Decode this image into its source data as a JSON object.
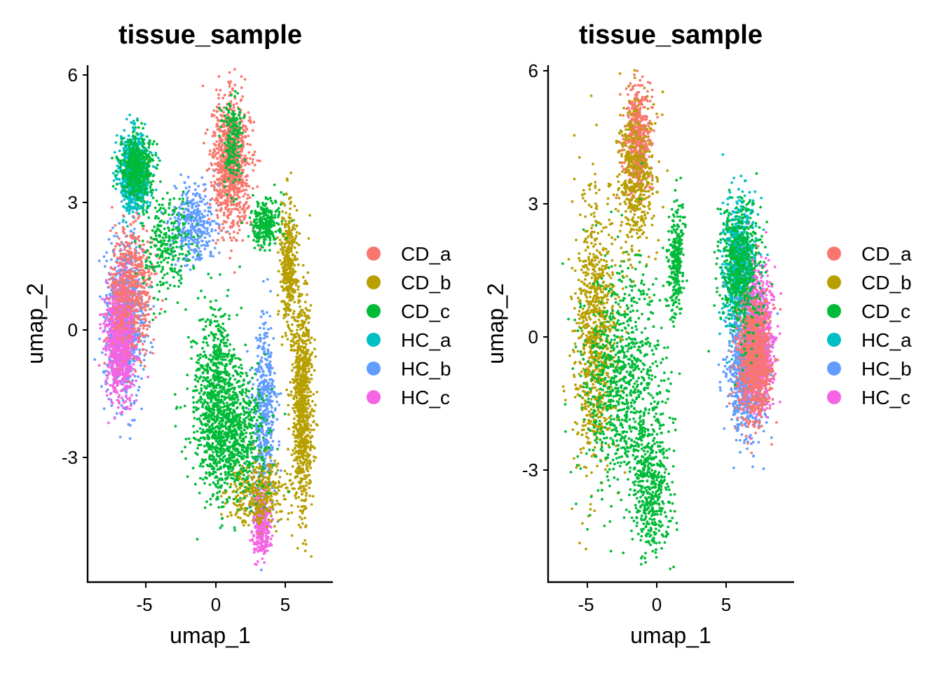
{
  "legend_colors": {
    "CD_a": "#F8766D",
    "CD_b": "#B79F00",
    "CD_c": "#00BA38",
    "HC_a": "#00BFC4",
    "HC_b": "#619CFF",
    "HC_c": "#F564E3"
  },
  "chart_data": [
    {
      "type": "scatter",
      "title": "tissue_sample",
      "xlabel": "umap_1",
      "ylabel": "umap_2",
      "xlim": [
        -9,
        8.3
      ],
      "ylim": [
        -6,
        6.2
      ],
      "xticks": [
        -5,
        0,
        5
      ],
      "yticks": [
        -3,
        0,
        3,
        6
      ],
      "xtick_labels": [
        "-5",
        "0",
        "5"
      ],
      "ytick_labels": [
        "-3",
        "0",
        "3",
        "6"
      ],
      "legend": {
        "title": "",
        "position": "right",
        "entries": [
          "CD_a",
          "CD_b",
          "CD_c",
          "HC_a",
          "HC_b",
          "HC_c"
        ]
      },
      "series": [
        {
          "name": "CD_c",
          "note": "dense, present across all clusters",
          "clusters": [
            {
              "x": 1.0,
              "y": -2.5,
              "sx": 1.7,
              "sy": 1.0,
              "weight": 1.0
            },
            {
              "x": 0.0,
              "y": -1.2,
              "sx": 1.1,
              "sy": 1.2,
              "weight": 0.6
            },
            {
              "x": -5.7,
              "y": 3.8,
              "sx": 0.8,
              "sy": 0.5,
              "weight": 0.5
            },
            {
              "x": -3.5,
              "y": 2.0,
              "sx": 1.2,
              "sy": 0.8,
              "weight": 0.3
            },
            {
              "x": 3.5,
              "y": 2.5,
              "sx": 0.7,
              "sy": 0.4,
              "weight": 0.3
            },
            {
              "x": 1.2,
              "y": 4.5,
              "sx": 0.5,
              "sy": 0.7,
              "weight": 0.2
            }
          ]
        },
        {
          "name": "CD_b",
          "note": "right-side elongated band",
          "clusters": [
            {
              "x": 6.2,
              "y": -1.8,
              "sx": 0.5,
              "sy": 1.7,
              "weight": 1.0
            },
            {
              "x": 5.2,
              "y": 1.5,
              "sx": 0.4,
              "sy": 0.9,
              "weight": 0.4
            },
            {
              "x": 3.0,
              "y": -3.8,
              "sx": 1.5,
              "sy": 0.5,
              "weight": 0.4
            }
          ]
        },
        {
          "name": "CD_a",
          "note": "upper-middle peak and left cluster",
          "clusters": [
            {
              "x": 1.1,
              "y": 3.9,
              "sx": 0.9,
              "sy": 1.0,
              "weight": 1.0
            },
            {
              "x": -6.0,
              "y": 1.0,
              "sx": 1.0,
              "sy": 1.0,
              "weight": 0.6
            }
          ]
        },
        {
          "name": "HC_a",
          "note": "sparse",
          "clusters": [
            {
              "x": -5.8,
              "y": 3.7,
              "sx": 0.7,
              "sy": 0.6,
              "weight": 1.0
            }
          ]
        },
        {
          "name": "HC_b",
          "note": "left cluster, edges of center",
          "clusters": [
            {
              "x": -6.5,
              "y": 0.2,
              "sx": 0.9,
              "sy": 1.2,
              "weight": 1.0
            },
            {
              "x": 3.5,
              "y": -2.0,
              "sx": 0.6,
              "sy": 1.5,
              "weight": 0.5
            },
            {
              "x": -1.5,
              "y": 2.5,
              "sx": 1.0,
              "sy": 0.6,
              "weight": 0.4
            }
          ]
        },
        {
          "name": "HC_c",
          "note": "left cluster, lower tip",
          "clusters": [
            {
              "x": -6.8,
              "y": -0.2,
              "sx": 0.7,
              "sy": 0.9,
              "weight": 1.0
            },
            {
              "x": 3.3,
              "y": -4.5,
              "sx": 0.4,
              "sy": 0.5,
              "weight": 0.4
            }
          ]
        }
      ]
    },
    {
      "type": "scatter",
      "title": "tissue_sample",
      "xlabel": "umap_1",
      "ylabel": "umap_2",
      "xlim": [
        -7.5,
        9.5
      ],
      "ylim": [
        -5.5,
        6.2
      ],
      "xticks": [
        -5,
        0,
        5
      ],
      "yticks": [
        -3,
        0,
        3,
        6
      ],
      "xtick_labels": [
        "-5",
        "0",
        "5"
      ],
      "ytick_labels": [
        "-3",
        "0",
        "3",
        "6"
      ],
      "legend": {
        "title": "",
        "position": "right",
        "entries": [
          "CD_a",
          "CD_b",
          "CD_c",
          "HC_a",
          "HC_b",
          "HC_c"
        ]
      },
      "series": [
        {
          "name": "CD_c",
          "note": "dominant over large left cluster",
          "clusters": [
            {
              "x": -2.5,
              "y": -1.0,
              "sx": 1.9,
              "sy": 1.7,
              "weight": 1.0
            },
            {
              "x": -0.3,
              "y": -3.4,
              "sx": 0.9,
              "sy": 1.0,
              "weight": 0.5
            },
            {
              "x": 6.0,
              "y": 1.5,
              "sx": 1.0,
              "sy": 1.0,
              "weight": 0.6
            },
            {
              "x": 1.4,
              "y": 1.8,
              "sx": 0.4,
              "sy": 0.9,
              "weight": 0.3
            }
          ]
        },
        {
          "name": "CD_b",
          "note": "left cluster, notably left edge and upper lobe",
          "clusters": [
            {
              "x": -4.5,
              "y": 0.0,
              "sx": 1.0,
              "sy": 2.0,
              "weight": 1.0
            },
            {
              "x": -1.5,
              "y": 3.5,
              "sx": 0.9,
              "sy": 1.2,
              "weight": 0.5
            }
          ]
        },
        {
          "name": "CD_a",
          "note": "upper left peak and right cluster",
          "clusters": [
            {
              "x": -1.4,
              "y": 4.4,
              "sx": 0.6,
              "sy": 0.8,
              "weight": 0.6
            },
            {
              "x": 7.0,
              "y": -0.5,
              "sx": 0.8,
              "sy": 0.9,
              "weight": 1.0
            }
          ]
        },
        {
          "name": "HC_a",
          "note": "sparse",
          "clusters": [
            {
              "x": 6.0,
              "y": 1.5,
              "sx": 0.8,
              "sy": 1.0,
              "weight": 1.0
            }
          ]
        },
        {
          "name": "HC_b",
          "note": "right cluster",
          "clusters": [
            {
              "x": 6.5,
              "y": -0.8,
              "sx": 0.9,
              "sy": 0.9,
              "weight": 1.0
            }
          ]
        },
        {
          "name": "HC_c",
          "note": "right cluster",
          "clusters": [
            {
              "x": 7.3,
              "y": 0.0,
              "sx": 0.7,
              "sy": 1.0,
              "weight": 1.0
            }
          ]
        }
      ]
    }
  ]
}
